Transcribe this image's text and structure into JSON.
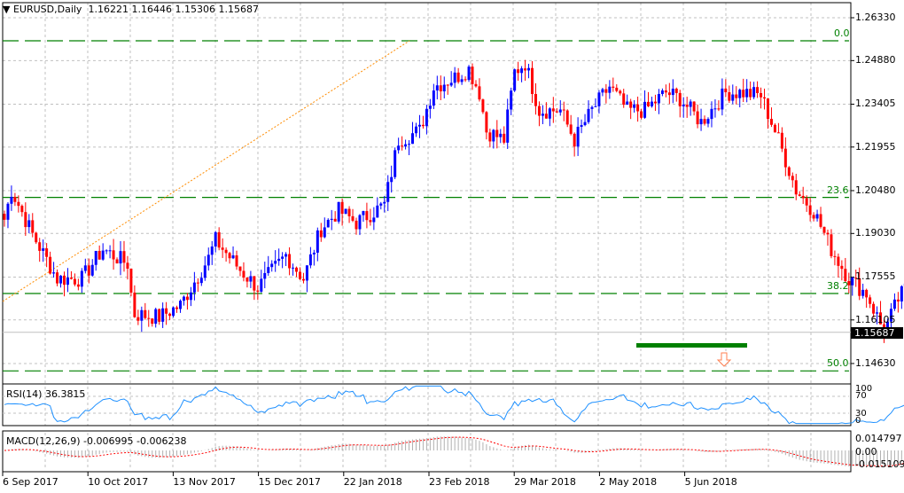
{
  "header": {
    "symbol": "EURUSD,Daily",
    "open": "1.16221",
    "high": "1.16446",
    "low": "1.15306",
    "close": "1.15687"
  },
  "price_axis": [
    "1.26330",
    "1.24880",
    "1.23405",
    "1.21955",
    "1.20480",
    "1.19030",
    "1.17555",
    "1.16105",
    "1.14630"
  ],
  "last_price": "1.15687",
  "fib_levels": [
    {
      "label": "0.0",
      "price": 1.2555
    },
    {
      "label": "23.6",
      "price": 1.2025
    },
    {
      "label": "38.2",
      "price": 1.17
    },
    {
      "label": "50.0",
      "price": 1.1438
    }
  ],
  "rsi": {
    "label": "RSI(14) 36.3815",
    "axis": [
      "100",
      "70",
      "30",
      "0"
    ]
  },
  "macd": {
    "label": "MACD(12,26,9) -0.006995 -0.006238",
    "axis": [
      "0.014797",
      "0.00",
      "-0.015109"
    ]
  },
  "dates": [
    "6 Sep 2017",
    "10 Oct 2017",
    "13 Nov 2017",
    "15 Dec 2017",
    "22 Jan 2018",
    "23 Feb 2018",
    "29 Mar 2018",
    "2 May 2018",
    "5 Jun 2018"
  ],
  "colors": {
    "bull": "#0000ff",
    "bear": "#ff0000",
    "fib": "#008000",
    "grid": "#c0c0c0",
    "rsi": "#1e90ff"
  },
  "chart_data": {
    "type": "candlestick",
    "keyframes": [
      [
        0,
        1.195
      ],
      [
        2,
        1.205
      ],
      [
        8,
        1.19
      ],
      [
        15,
        1.175
      ],
      [
        22,
        1.175
      ],
      [
        28,
        1.185
      ],
      [
        35,
        1.18
      ],
      [
        36,
        1.17
      ],
      [
        37,
        1.163
      ],
      [
        44,
        1.162
      ],
      [
        50,
        1.166
      ],
      [
        58,
        1.182
      ],
      [
        60,
        1.188
      ],
      [
        67,
        1.178
      ],
      [
        72,
        1.172
      ],
      [
        80,
        1.183
      ],
      [
        85,
        1.175
      ],
      [
        90,
        1.192
      ],
      [
        95,
        1.198
      ],
      [
        100,
        1.194
      ],
      [
        108,
        1.2
      ],
      [
        112,
        1.222
      ],
      [
        118,
        1.225
      ],
      [
        122,
        1.24
      ],
      [
        128,
        1.243
      ],
      [
        132,
        1.246
      ],
      [
        135,
        1.238
      ],
      [
        137,
        1.225
      ],
      [
        142,
        1.222
      ],
      [
        145,
        1.245
      ],
      [
        148,
        1.248
      ],
      [
        152,
        1.232
      ],
      [
        158,
        1.232
      ],
      [
        162,
        1.222
      ],
      [
        167,
        1.232
      ],
      [
        172,
        1.24
      ],
      [
        177,
        1.232
      ],
      [
        182,
        1.232
      ],
      [
        188,
        1.238
      ],
      [
        192,
        1.236
      ],
      [
        198,
        1.228
      ],
      [
        205,
        1.238
      ],
      [
        210,
        1.238
      ],
      [
        215,
        1.237
      ],
      [
        220,
        1.222
      ],
      [
        225,
        1.205
      ],
      [
        230,
        1.198
      ],
      [
        235,
        1.185
      ],
      [
        240,
        1.175
      ],
      [
        245,
        1.17
      ],
      [
        250,
        1.157
      ],
      [
        254,
        1.168
      ],
      [
        258,
        1.175
      ],
      [
        263,
        1.176
      ],
      [
        266,
        1.174
      ],
      [
        267,
        1.16
      ],
      [
        270,
        1.159
      ],
      [
        272,
        1.157
      ]
    ]
  }
}
